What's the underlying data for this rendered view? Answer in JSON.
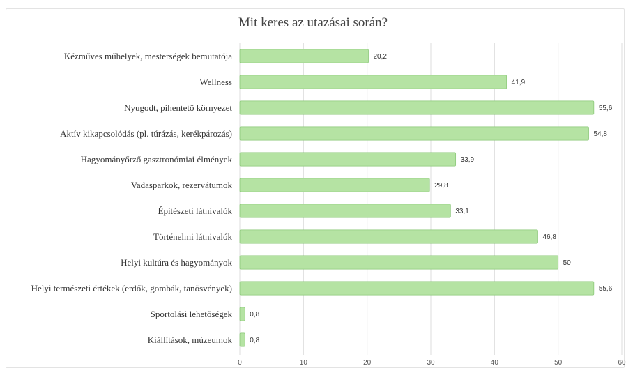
{
  "chart_data": {
    "type": "bar",
    "orientation": "horizontal",
    "title": "Mit keres az utazásai során?",
    "categories": [
      "Kézműves műhelyek, mesterségek bemutatója",
      "Wellness",
      "Nyugodt, pihentető környezet",
      "Aktív kikapcsolódás (pl. túrázás, kerékpározás)",
      "Hagyományőrző gasztronómiai élmények",
      "Vadasparkok, rezervátumok",
      "Építészeti látnivalók",
      "Történelmi látnivalók",
      "Helyi kultúra és hagyományok",
      "Helyi természeti értékek (erdők, gombák, tanösvények)",
      "Sportolási lehetőségek",
      "Kiállítások, múzeumok"
    ],
    "values": [
      20.2,
      41.9,
      55.6,
      54.8,
      33.9,
      29.8,
      33.1,
      46.8,
      50,
      55.6,
      0.8,
      0.8
    ],
    "value_labels": [
      "20,2",
      "41,9",
      "55,6",
      "54,8",
      "33,9",
      "29,8",
      "33,1",
      "46,8",
      "50",
      "55,6",
      "0,8",
      "0,8"
    ],
    "xlim": [
      0,
      60
    ],
    "xticks": [
      0,
      10,
      20,
      30,
      40,
      50,
      60
    ],
    "grid": "vertical",
    "colors": {
      "bar_fill": "#b5e3a3",
      "bar_stroke": "#8cc97a"
    }
  }
}
